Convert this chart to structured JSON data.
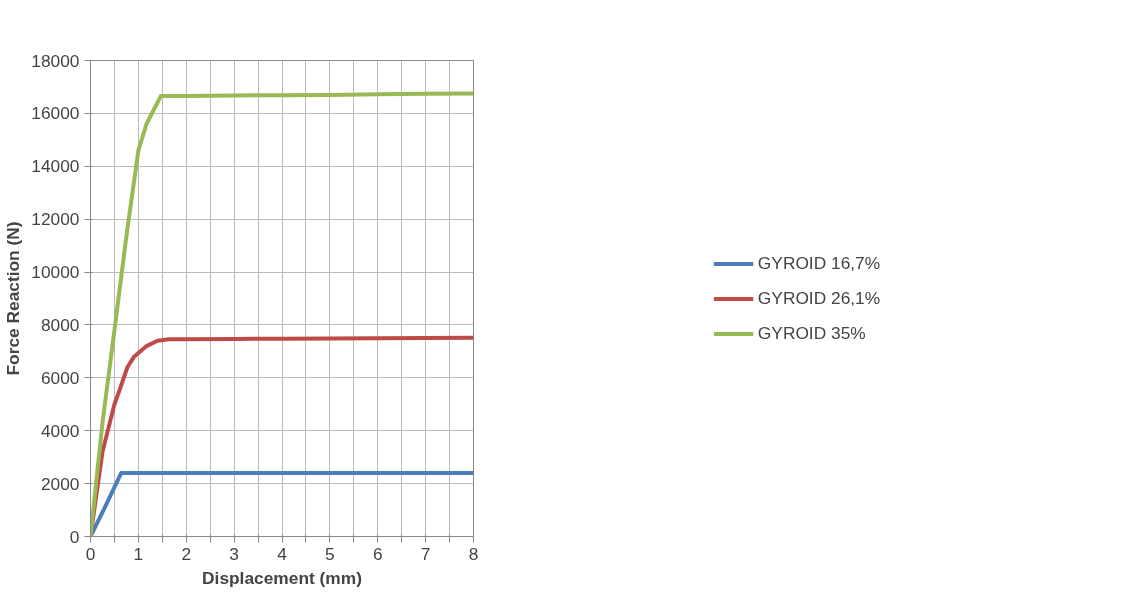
{
  "chart_data": {
    "type": "line",
    "xlabel": "Displacement (mm)",
    "ylabel": "Force Reaction (N)",
    "xlim": [
      0,
      8
    ],
    "ylim": [
      0,
      18000
    ],
    "xticks": [
      0,
      {
        "value": 0.5,
        "label": null
      },
      1,
      {
        "value": 1.5,
        "label": null
      },
      2,
      {
        "value": 2.5,
        "label": null
      },
      3,
      {
        "value": 3.5,
        "label": null
      },
      4,
      {
        "value": 4.5,
        "label": null
      },
      5,
      {
        "value": 5.5,
        "label": null
      },
      6,
      {
        "value": 6.5,
        "label": null
      },
      7,
      {
        "value": 7.5,
        "label": null
      },
      8
    ],
    "yticks": [
      0,
      2000,
      4000,
      6000,
      8000,
      10000,
      12000,
      14000,
      16000,
      18000
    ],
    "grid": true,
    "legend": "right",
    "marker": "none",
    "line_style": "solid",
    "series": [
      {
        "name": "GYROID 16,7%",
        "color": "#4a7ebb",
        "x": [
          0,
          0.3,
          0.64,
          1,
          2,
          3,
          4,
          5,
          6,
          7,
          8
        ],
        "values": [
          0,
          1100,
          2400,
          2400,
          2400,
          2400,
          2400,
          2400,
          2400,
          2400,
          2400
        ]
      },
      {
        "name": "GYROID 26,1%",
        "color": "#be4b48",
        "x": [
          0,
          0.25,
          0.5,
          0.62,
          0.77,
          0.91,
          1.17,
          1.4,
          1.64,
          2,
          3,
          4,
          5,
          6,
          7,
          8
        ],
        "values": [
          0,
          3200,
          5000,
          5600,
          6400,
          6800,
          7200,
          7400,
          7460,
          7460,
          7470,
          7480,
          7490,
          7500,
          7510,
          7520
        ]
      },
      {
        "name": "GYROID 35%",
        "color": "#98b954",
        "x": [
          0,
          0.25,
          0.5,
          0.76,
          1,
          1.17,
          1.47,
          2,
          3,
          4,
          5,
          6,
          7,
          8
        ],
        "values": [
          0,
          4300,
          7800,
          11500,
          14600,
          15600,
          16660,
          16660,
          16680,
          16690,
          16700,
          16720,
          16740,
          16750
        ]
      }
    ]
  }
}
